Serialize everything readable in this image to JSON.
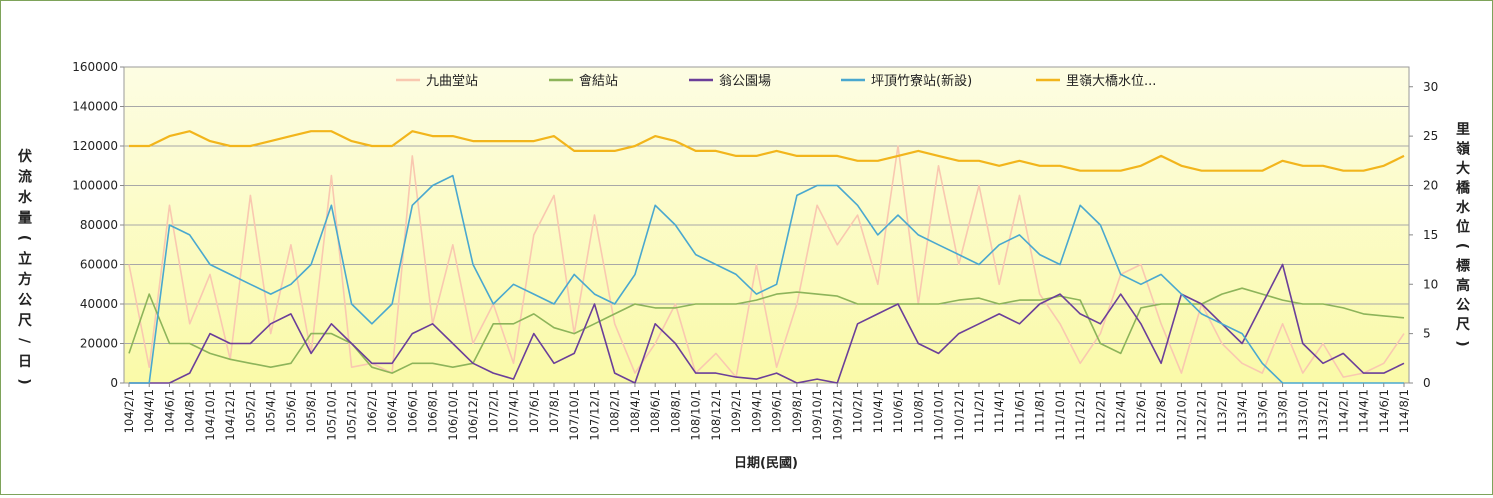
{
  "chart_data": {
    "type": "line",
    "title": "",
    "xlabel": "日期(民國)",
    "ylabel": "伏流水量(立方公尺/日)",
    "y2label": "里嶺大橋水位(標高公尺)",
    "ylim": [
      0,
      160000
    ],
    "y2lim": [
      0,
      32
    ],
    "yticks": [
      "0",
      "20000",
      "40000",
      "60000",
      "80000",
      "100000",
      "120000",
      "140000",
      "160000"
    ],
    "y2ticks": [
      "0",
      "5",
      "10",
      "15",
      "20",
      "25",
      "30"
    ],
    "grid": true,
    "legend_position": "top",
    "categories": [
      "104/2/1",
      "104/4/1",
      "104/6/1",
      "104/8/1",
      "104/10/1",
      "104/12/1",
      "105/2/1",
      "105/4/1",
      "105/6/1",
      "105/8/1",
      "105/10/1",
      "105/12/1",
      "106/2/1",
      "106/4/1",
      "106/6/1",
      "106/8/1",
      "106/10/1",
      "106/12/1",
      "107/2/1",
      "107/4/1",
      "107/6/1",
      "107/8/1",
      "107/10/1",
      "107/12/1",
      "108/2/1",
      "108/4/1",
      "108/6/1",
      "108/8/1",
      "108/10/1",
      "108/12/1",
      "109/2/1",
      "109/4/1",
      "109/6/1",
      "109/8/1",
      "109/10/1",
      "109/12/1",
      "110/2/1",
      "110/4/1",
      "110/6/1",
      "110/8/1",
      "110/10/1",
      "110/12/1",
      "111/2/1",
      "111/4/1",
      "111/6/1",
      "111/8/1",
      "111/10/1",
      "111/12/1",
      "112/2/1",
      "112/4/1",
      "112/6/1",
      "112/8/1",
      "112/10/1",
      "112/12/1",
      "113/2/1",
      "113/4/1",
      "113/6/1",
      "113/8/1",
      "113/10/1",
      "113/12/1",
      "114/2/1",
      "114/4/1",
      "114/6/1",
      "114/8/1"
    ],
    "series": [
      {
        "name": "九曲堂站",
        "axis": "left",
        "color": "#f9c8b0",
        "values": [
          60000,
          8000,
          90000,
          30000,
          55000,
          12000,
          95000,
          25000,
          70000,
          15000,
          105000,
          8000,
          10000,
          5000,
          115000,
          30000,
          70000,
          20000,
          40000,
          10000,
          75000,
          95000,
          25000,
          85000,
          30000,
          5000,
          20000,
          40000,
          5000,
          15000,
          3000,
          60000,
          8000,
          40000,
          90000,
          70000,
          85000,
          50000,
          120000,
          40000,
          110000,
          60000,
          100000,
          50000,
          95000,
          45000,
          30000,
          10000,
          25000,
          55000,
          60000,
          30000,
          5000,
          40000,
          20000,
          10000,
          5000,
          30000,
          5000,
          20000,
          3000,
          5000,
          10000,
          25000
        ]
      },
      {
        "name": "會結站",
        "axis": "left",
        "color": "#8db45a",
        "values": [
          15000,
          45000,
          20000,
          20000,
          15000,
          12000,
          10000,
          8000,
          10000,
          25000,
          25000,
          20000,
          8000,
          5000,
          10000,
          10000,
          8000,
          10000,
          30000,
          30000,
          35000,
          28000,
          25000,
          30000,
          35000,
          40000,
          38000,
          38000,
          40000,
          40000,
          40000,
          42000,
          45000,
          46000,
          45000,
          44000,
          40000,
          40000,
          40000,
          40000,
          40000,
          42000,
          43000,
          40000,
          42000,
          42000,
          44000,
          42000,
          20000,
          15000,
          38000,
          40000,
          40000,
          40000,
          45000,
          48000,
          45000,
          42000,
          40000,
          40000,
          38000,
          35000,
          34000,
          33000
        ]
      },
      {
        "name": "翁公園場",
        "axis": "left",
        "color": "#6b3f99",
        "values": [
          0,
          0,
          0,
          5000,
          25000,
          20000,
          20000,
          30000,
          35000,
          15000,
          30000,
          20000,
          10000,
          10000,
          25000,
          30000,
          20000,
          10000,
          5000,
          2000,
          25000,
          10000,
          15000,
          40000,
          5000,
          0,
          30000,
          20000,
          5000,
          5000,
          3000,
          2000,
          5000,
          0,
          2000,
          0,
          30000,
          35000,
          40000,
          20000,
          15000,
          25000,
          30000,
          35000,
          30000,
          40000,
          45000,
          35000,
          30000,
          45000,
          30000,
          10000,
          45000,
          40000,
          30000,
          20000,
          40000,
          60000,
          20000,
          10000,
          15000,
          5000,
          5000,
          10000
        ]
      },
      {
        "name": "坪頂竹寮站(新設)",
        "axis": "left",
        "color": "#4aa8cf",
        "values": [
          0,
          0,
          80000,
          75000,
          60000,
          55000,
          50000,
          45000,
          50000,
          60000,
          90000,
          40000,
          30000,
          40000,
          90000,
          100000,
          105000,
          60000,
          40000,
          50000,
          45000,
          40000,
          55000,
          45000,
          40000,
          55000,
          90000,
          80000,
          65000,
          60000,
          55000,
          45000,
          50000,
          95000,
          100000,
          100000,
          90000,
          75000,
          85000,
          75000,
          70000,
          65000,
          60000,
          70000,
          75000,
          65000,
          60000,
          90000,
          80000,
          55000,
          50000,
          55000,
          45000,
          35000,
          30000,
          25000,
          10000,
          0,
          0,
          0,
          0,
          0,
          0,
          0
        ]
      },
      {
        "name": "里嶺大橋水位...",
        "axis": "right",
        "color": "#f2b51c",
        "values": [
          24,
          24,
          25,
          25.5,
          24.5,
          24,
          24,
          24.5,
          25,
          25.5,
          25.5,
          24.5,
          24,
          24,
          25.5,
          25,
          25,
          24.5,
          24.5,
          24.5,
          24.5,
          25,
          23.5,
          23.5,
          23.5,
          24,
          25,
          24.5,
          23.5,
          23.5,
          23,
          23,
          23.5,
          23,
          23,
          23,
          22.5,
          22.5,
          23,
          23.5,
          23,
          22.5,
          22.5,
          22,
          22.5,
          22,
          22,
          21.5,
          21.5,
          21.5,
          22,
          23,
          22,
          21.5,
          21.5,
          21.5,
          21.5,
          22.5,
          22,
          22,
          21.5,
          21.5,
          22,
          23
        ]
      }
    ]
  }
}
